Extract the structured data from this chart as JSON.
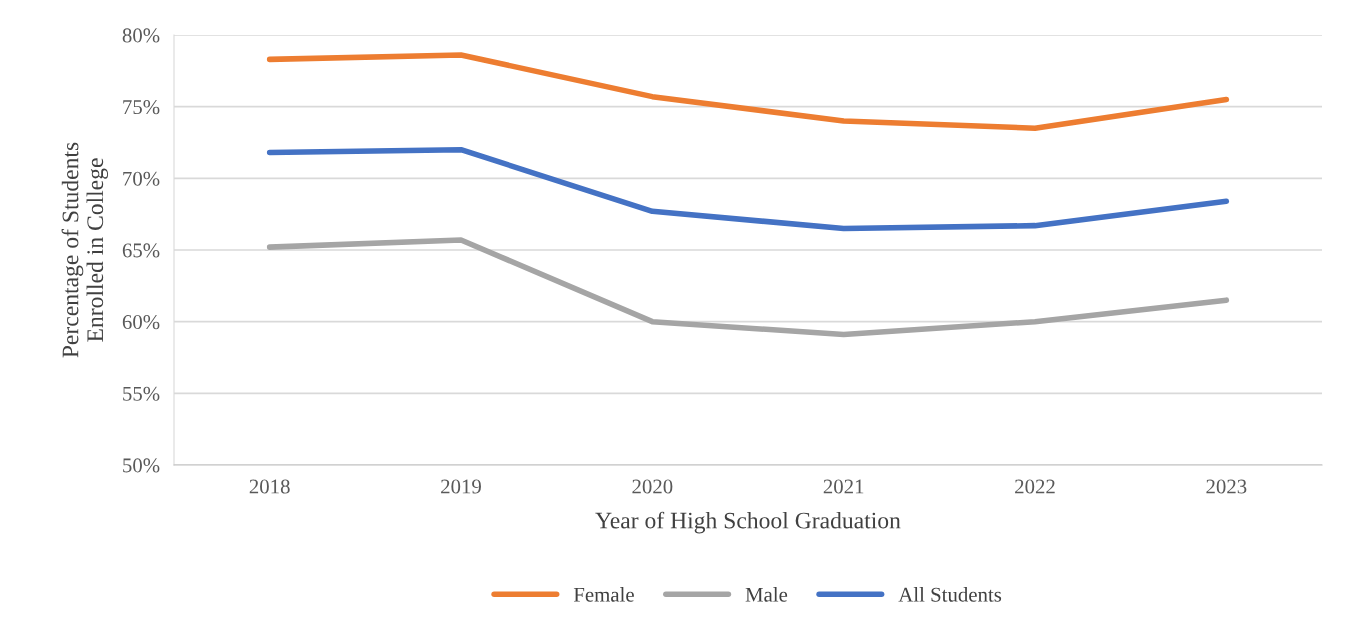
{
  "chart_data": {
    "type": "line",
    "xlabel": "Year of High School Graduation",
    "ylabel": "Percentage of Students\nEnrolled in College",
    "categories": [
      "2018",
      "2019",
      "2020",
      "2021",
      "2022",
      "2023"
    ],
    "series": [
      {
        "name": "Female",
        "color": "#ed7d31",
        "values": [
          78.3,
          78.6,
          75.7,
          74.0,
          73.5,
          75.5
        ]
      },
      {
        "name": "Male",
        "color": "#a5a5a5",
        "values": [
          65.2,
          65.7,
          60.0,
          59.1,
          60.0,
          61.5
        ]
      },
      {
        "name": "All Students",
        "color": "#4472c4",
        "values": [
          71.8,
          72.0,
          67.7,
          66.5,
          66.7,
          68.4
        ]
      }
    ],
    "ylim": [
      50,
      80
    ],
    "yticks": [
      {
        "value": 50,
        "label": "50%"
      },
      {
        "value": 55,
        "label": "55%"
      },
      {
        "value": 60,
        "label": "60%"
      },
      {
        "value": 65,
        "label": "65%"
      },
      {
        "value": 70,
        "label": "70%"
      },
      {
        "value": 75,
        "label": "75%"
      },
      {
        "value": 80,
        "label": "80%"
      }
    ],
    "grid": "y",
    "legend": "bottom",
    "marker": "none",
    "line_style": "solid"
  }
}
